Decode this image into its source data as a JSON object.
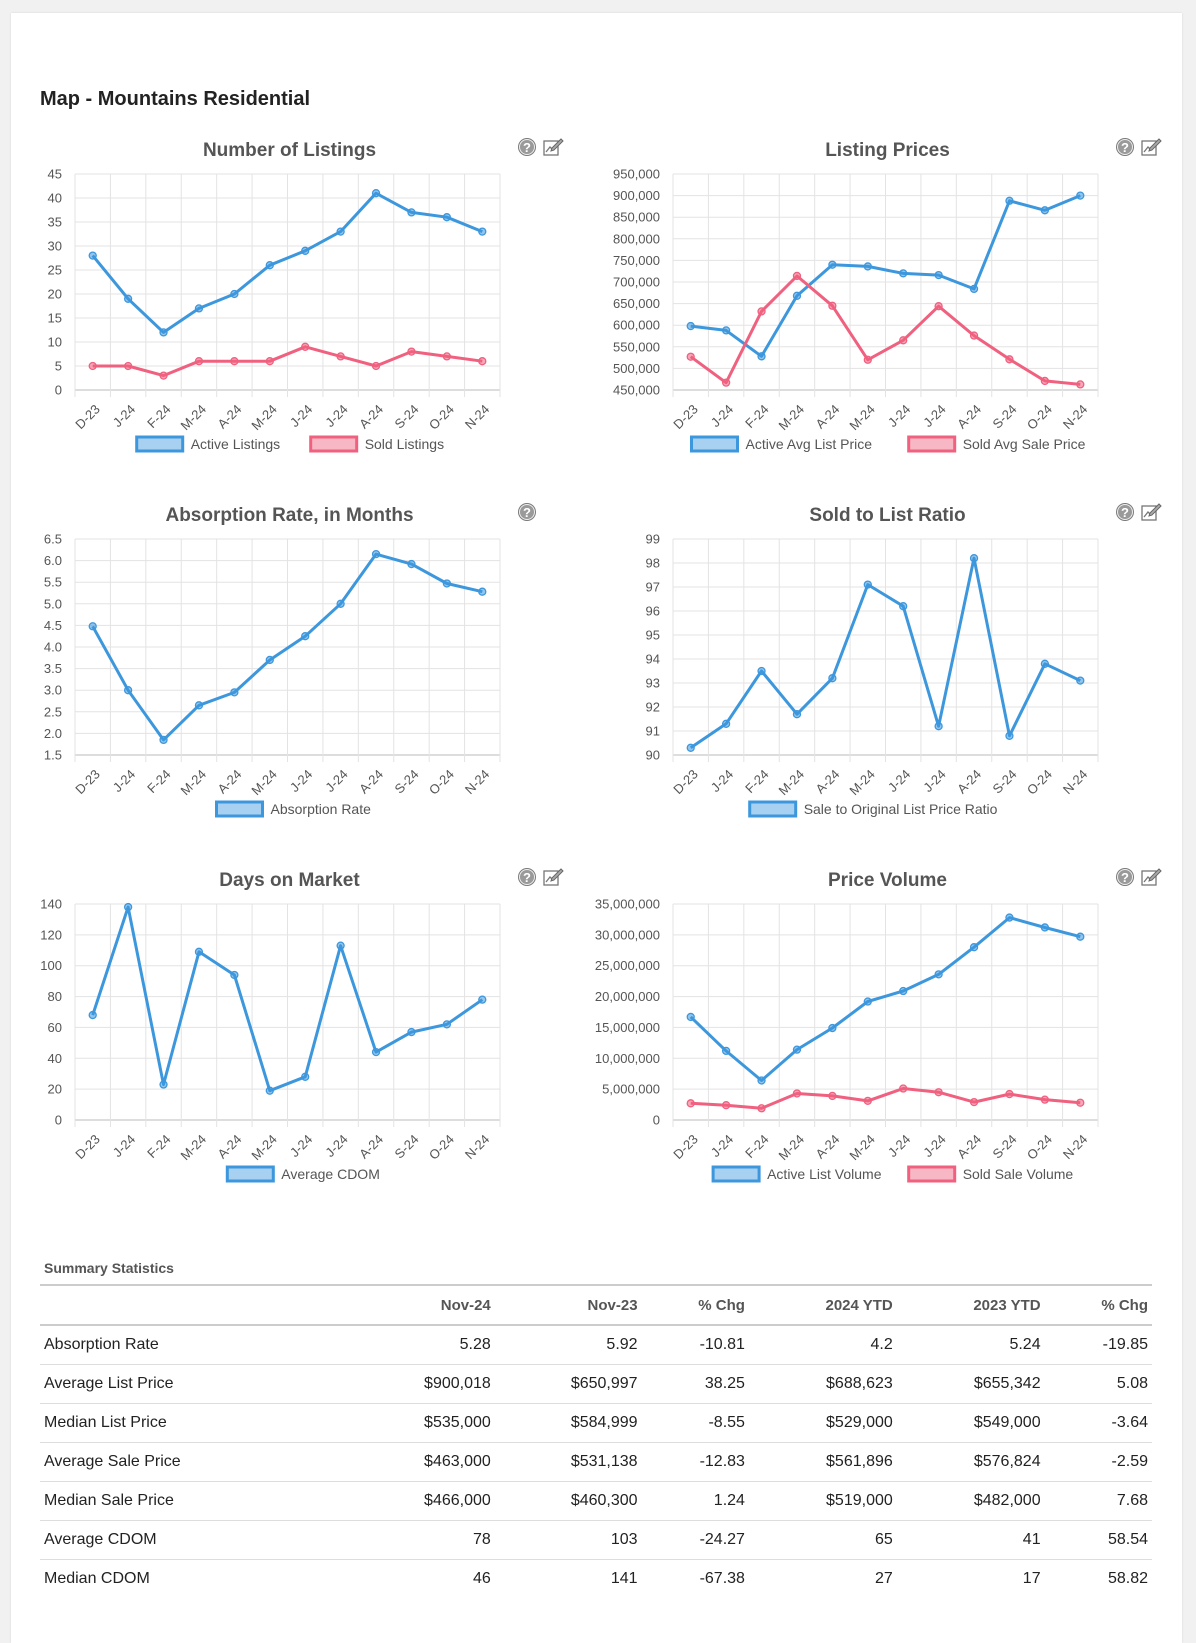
{
  "page": {
    "title": "Map - Mountains Residential"
  },
  "chart_data": [
    {
      "id": "listings",
      "type": "line",
      "title": "Number of Listings",
      "categories": [
        "D-23",
        "J-24",
        "F-24",
        "M-24",
        "A-24",
        "M-24",
        "J-24",
        "J-24",
        "A-24",
        "S-24",
        "O-24",
        "N-24"
      ],
      "ylim": [
        0,
        45
      ],
      "yticks": [
        "0",
        "5",
        "10",
        "15",
        "20",
        "25",
        "30",
        "35",
        "40",
        "45"
      ],
      "series": [
        {
          "name": "Active Listings",
          "color": "#3d97dd",
          "values": [
            28,
            19,
            12,
            17,
            20,
            26,
            29,
            33,
            41,
            37,
            36,
            33
          ]
        },
        {
          "name": "Sold Listings",
          "color": "#f0607f",
          "values": [
            5,
            5,
            3,
            6,
            6,
            6,
            9,
            7,
            5,
            8,
            7,
            6
          ]
        }
      ],
      "icons": [
        "help-icon",
        "chart-settings-icon"
      ]
    },
    {
      "id": "prices",
      "type": "line",
      "title": "Listing Prices",
      "categories": [
        "D-23",
        "J-24",
        "F-24",
        "M-24",
        "A-24",
        "M-24",
        "J-24",
        "J-24",
        "A-24",
        "S-24",
        "O-24",
        "N-24"
      ],
      "ylim": [
        450000,
        950000
      ],
      "yticks": [
        "450,000",
        "500,000",
        "550,000",
        "600,000",
        "650,000",
        "700,000",
        "750,000",
        "800,000",
        "850,000",
        "900,000",
        "950,000"
      ],
      "series": [
        {
          "name": "Active Avg List Price",
          "color": "#3d97dd",
          "values": [
            598000,
            588000,
            528000,
            668000,
            740000,
            736000,
            720000,
            716000,
            684000,
            888000,
            866000,
            900018
          ]
        },
        {
          "name": "Sold Avg Sale Price",
          "color": "#f0607f",
          "values": [
            527000,
            467000,
            632000,
            714000,
            645000,
            520000,
            565000,
            644000,
            576000,
            521000,
            471000,
            463000
          ]
        }
      ],
      "icons": [
        "help-icon",
        "chart-settings-icon"
      ]
    },
    {
      "id": "absorption",
      "type": "line",
      "title": "Absorption Rate, in Months",
      "categories": [
        "D-23",
        "J-24",
        "F-24",
        "M-24",
        "A-24",
        "M-24",
        "J-24",
        "J-24",
        "A-24",
        "S-24",
        "O-24",
        "N-24"
      ],
      "ylim": [
        1.5,
        6.5
      ],
      "yticks": [
        "1.5",
        "2.0",
        "2.5",
        "3.0",
        "3.5",
        "4.0",
        "4.5",
        "5.0",
        "5.5",
        "6.0",
        "6.5"
      ],
      "series": [
        {
          "name": "Absorption Rate",
          "color": "#3d97dd",
          "values": [
            4.48,
            3.0,
            1.85,
            2.65,
            2.95,
            3.7,
            4.25,
            5.0,
            6.15,
            5.92,
            5.47,
            5.28
          ]
        }
      ],
      "icons": [
        "help-icon"
      ]
    },
    {
      "id": "ratio",
      "type": "line",
      "title": "Sold to List Ratio",
      "categories": [
        "D-23",
        "J-24",
        "F-24",
        "M-24",
        "A-24",
        "M-24",
        "J-24",
        "J-24",
        "A-24",
        "S-24",
        "O-24",
        "N-24"
      ],
      "ylim": [
        90,
        99
      ],
      "yticks": [
        "90",
        "91",
        "92",
        "93",
        "94",
        "95",
        "96",
        "97",
        "98",
        "99"
      ],
      "series": [
        {
          "name": "Sale to Original List Price Ratio",
          "color": "#3d97dd",
          "values": [
            90.3,
            91.3,
            93.5,
            91.7,
            93.2,
            97.1,
            96.2,
            91.2,
            98.2,
            90.8,
            93.8,
            93.1
          ]
        }
      ],
      "icons": [
        "help-icon",
        "chart-settings-icon"
      ]
    },
    {
      "id": "dom",
      "type": "line",
      "title": "Days on Market",
      "categories": [
        "D-23",
        "J-24",
        "F-24",
        "M-24",
        "A-24",
        "M-24",
        "J-24",
        "J-24",
        "A-24",
        "S-24",
        "O-24",
        "N-24"
      ],
      "ylim": [
        0,
        140
      ],
      "yticks": [
        "0",
        "20",
        "40",
        "60",
        "80",
        "100",
        "120",
        "140"
      ],
      "series": [
        {
          "name": "Average CDOM",
          "color": "#3d97dd",
          "values": [
            68,
            138,
            23,
            109,
            94,
            19,
            28,
            113,
            44,
            57,
            62,
            78
          ]
        }
      ],
      "icons": [
        "help-icon",
        "chart-settings-icon"
      ]
    },
    {
      "id": "volume",
      "type": "line",
      "title": "Price Volume",
      "categories": [
        "D-23",
        "J-24",
        "F-24",
        "M-24",
        "A-24",
        "M-24",
        "J-24",
        "J-24",
        "A-24",
        "S-24",
        "O-24",
        "N-24"
      ],
      "ylim": [
        0,
        35000000
      ],
      "yticks": [
        "0",
        "5,000,000",
        "10,000,000",
        "15,000,000",
        "20,000,000",
        "25,000,000",
        "30,000,000",
        "35,000,000"
      ],
      "series": [
        {
          "name": "Active List Volume",
          "color": "#3d97dd",
          "values": [
            16700000,
            11200000,
            6400000,
            11400000,
            14900000,
            19200000,
            20900000,
            23600000,
            28000000,
            32800000,
            31200000,
            29700000
          ]
        },
        {
          "name": "Sold Sale Volume",
          "color": "#f0607f",
          "values": [
            2700000,
            2400000,
            1900000,
            4300000,
            3900000,
            3100000,
            5100000,
            4500000,
            2900000,
            4200000,
            3300000,
            2800000
          ]
        }
      ],
      "icons": [
        "help-icon",
        "chart-settings-icon"
      ]
    }
  ],
  "summary": {
    "title": "Summary Statistics",
    "headers": [
      "",
      "Nov-24",
      "Nov-23",
      "% Chg",
      "2024 YTD",
      "2023 YTD",
      "% Chg"
    ],
    "rows": [
      [
        "Absorption Rate",
        "5.28",
        "5.92",
        "-10.81",
        "4.2",
        "5.24",
        "-19.85"
      ],
      [
        "Average List Price",
        "$900,018",
        "$650,997",
        "38.25",
        "$688,623",
        "$655,342",
        "5.08"
      ],
      [
        "Median List Price",
        "$535,000",
        "$584,999",
        "-8.55",
        "$529,000",
        "$549,000",
        "-3.64"
      ],
      [
        "Average Sale Price",
        "$463,000",
        "$531,138",
        "-12.83",
        "$561,896",
        "$576,824",
        "-2.59"
      ],
      [
        "Median Sale Price",
        "$466,000",
        "$460,300",
        "1.24",
        "$519,000",
        "$482,000",
        "7.68"
      ],
      [
        "Average CDOM",
        "78",
        "103",
        "-24.27",
        "65",
        "41",
        "58.54"
      ],
      [
        "Median CDOM",
        "46",
        "141",
        "-67.38",
        "27",
        "17",
        "58.82"
      ]
    ]
  }
}
